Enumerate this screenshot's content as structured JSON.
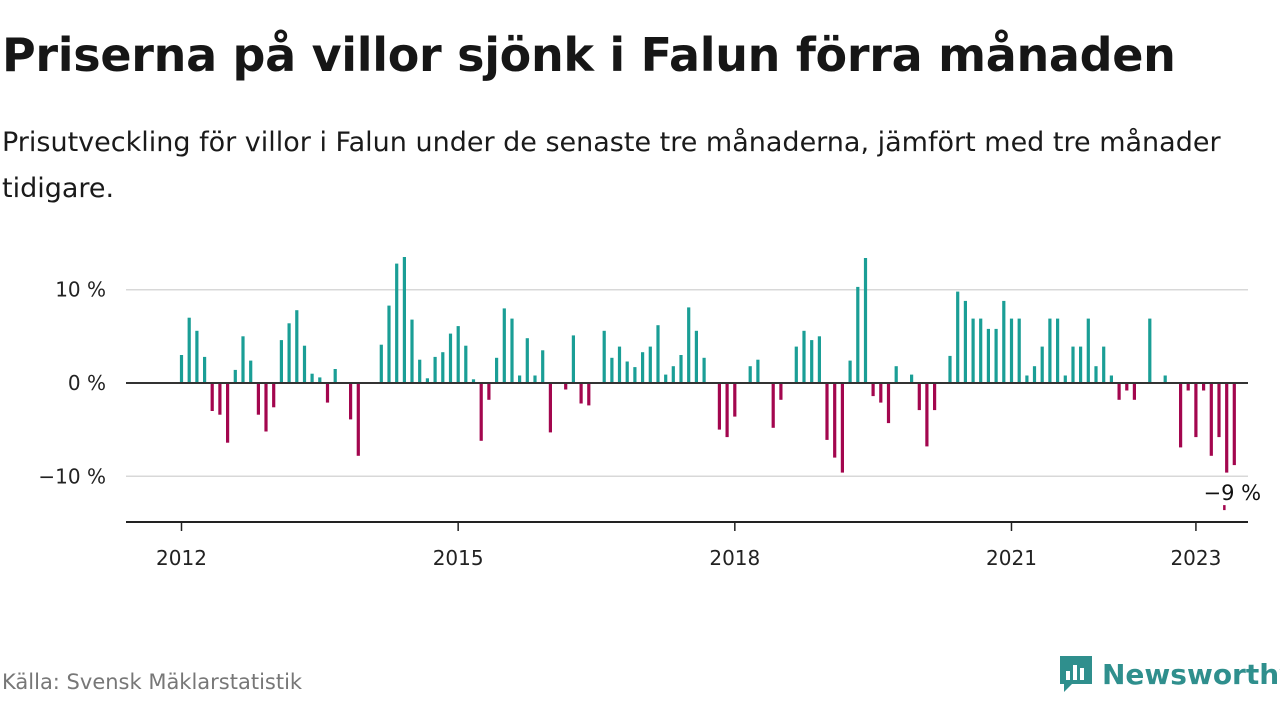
{
  "header": {
    "title": "Priserna på villor sjönk i Falun förra månaden",
    "subtitle": "Prisutveckling för villor i Falun under de senaste tre månaderna, jämfört med tre månader tidigare."
  },
  "footer": {
    "source": "Källa: Svensk Mäklarstatistik",
    "brand": "Newsworthy"
  },
  "colors": {
    "positive": "#1a9e96",
    "negative": "#a3064e",
    "grid": "#d8d8d8",
    "baseline": "#333333",
    "brand": "#2f8f8d"
  },
  "chart_data": {
    "type": "bar",
    "ylim": [
      -15,
      14
    ],
    "yticks": [
      {
        "value": 10,
        "label": "10 %"
      },
      {
        "value": 0,
        "label": "0 %"
      },
      {
        "value": -10,
        "label": "−10 %"
      }
    ],
    "xticks": [
      {
        "year": 2012,
        "label": "2012"
      },
      {
        "year": 2015,
        "label": "2015"
      },
      {
        "year": 2018,
        "label": "2018"
      },
      {
        "year": 2021,
        "label": "2021"
      },
      {
        "year": 2023,
        "label": "2023"
      }
    ],
    "grid": true,
    "start": "2012-01",
    "values": [
      3.0,
      7.0,
      5.6,
      2.8,
      -3.0,
      -3.4,
      -6.4,
      1.4,
      5.0,
      2.4,
      -3.4,
      -5.2,
      -2.6,
      4.6,
      6.4,
      7.8,
      4.0,
      1.0,
      0.6,
      -2.1,
      1.5,
      0.0,
      -3.9,
      -7.8,
      0.0,
      0.0,
      4.1,
      8.3,
      12.8,
      13.5,
      6.8,
      2.5,
      0.5,
      2.8,
      3.3,
      5.3,
      6.1,
      4.0,
      0.4,
      -6.2,
      -1.8,
      2.7,
      8.0,
      6.9,
      0.8,
      4.8,
      0.8,
      3.5,
      -5.3,
      0.0,
      -0.7,
      5.1,
      -2.2,
      -2.4,
      0.0,
      5.6,
      2.7,
      3.9,
      2.3,
      1.7,
      3.3,
      3.9,
      6.2,
      0.9,
      1.8,
      3.0,
      8.1,
      5.6,
      2.7,
      0.0,
      -5.0,
      -5.8,
      -3.6,
      0.0,
      1.8,
      2.5,
      0.0,
      -4.8,
      -1.8,
      0.0,
      3.9,
      5.6,
      4.6,
      5.0,
      -6.1,
      -8.0,
      -9.6,
      2.4,
      10.3,
      13.4,
      -1.4,
      -2.1,
      -4.3,
      1.8,
      0.0,
      0.9,
      -2.9,
      -6.8,
      -2.9,
      0.0,
      2.9,
      9.8,
      8.8,
      6.9,
      6.9,
      5.8,
      5.8,
      8.8,
      6.9,
      6.9,
      0.8,
      1.8,
      3.9,
      6.9,
      6.9,
      0.8,
      3.9,
      3.9,
      6.9,
      1.8,
      3.9,
      0.8,
      -1.8,
      -0.8,
      -1.8,
      0.0,
      6.9,
      0.0,
      0.8,
      0.0,
      -6.9,
      -0.8,
      -5.8,
      -0.8,
      -7.8,
      -5.8,
      -9.6,
      -8.8
    ],
    "annotation": {
      "label": "−9 %",
      "value": -8.8
    }
  }
}
